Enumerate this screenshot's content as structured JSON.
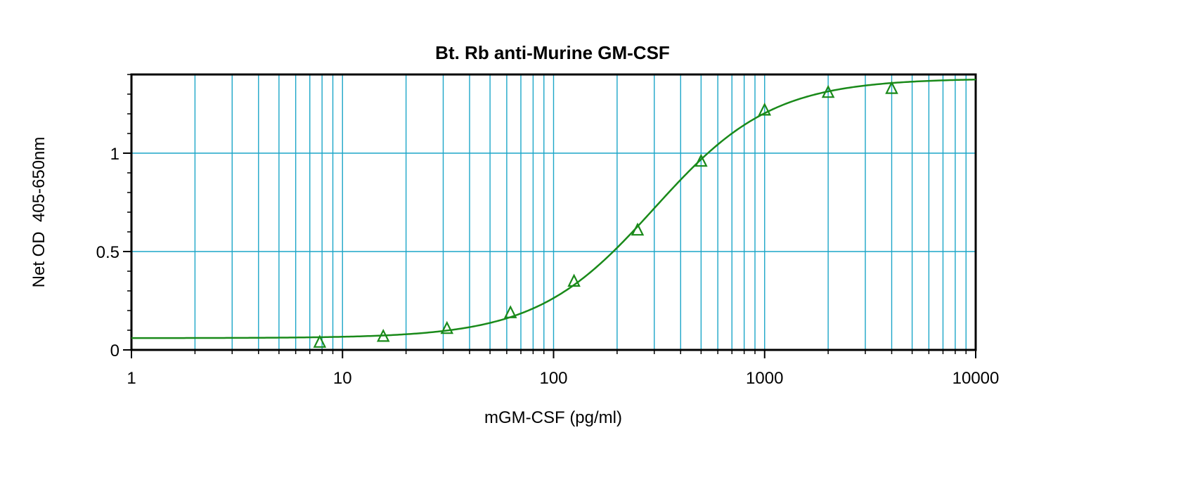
{
  "chart_data": {
    "type": "scatter",
    "title": "Bt. Rb anti-Murine GM-CSF",
    "xlabel": "mGM-CSF (pg/ml)",
    "ylabel": "Net OD  405-650nm",
    "x_scale": "log",
    "xlim": [
      1,
      10000
    ],
    "ylim": [
      0,
      1.4
    ],
    "x_ticks": [
      1,
      10,
      100,
      1000,
      10000
    ],
    "x_tick_labels": [
      "1",
      "10",
      "100",
      "1000",
      "10000"
    ],
    "y_ticks": [
      0,
      0.5,
      1
    ],
    "y_tick_labels": [
      "0",
      "0.5",
      "1"
    ],
    "grid": true,
    "legend": "none",
    "series": [
      {
        "marker": "triangle",
        "x": [
          7.8,
          15.6,
          31.25,
          62.5,
          125,
          250,
          500,
          1000,
          2000,
          4000
        ],
        "y": [
          0.04,
          0.07,
          0.11,
          0.19,
          0.35,
          0.61,
          0.96,
          1.22,
          1.31,
          1.33
        ]
      }
    ],
    "fit": {
      "type": "4PL",
      "bottom": 0.06,
      "top": 1.38,
      "ec50": 300,
      "hill": 1.55
    },
    "colors": {
      "data": "#1a8a1a",
      "grid": "#1ca6c8",
      "axes": "#000000"
    }
  }
}
